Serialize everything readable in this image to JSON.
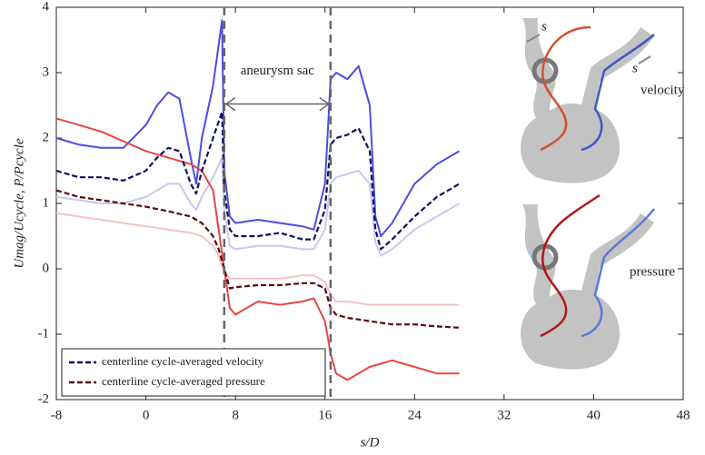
{
  "chart_data": {
    "type": "line",
    "xlabel": "s/D",
    "ylabel": "Umag/Ucycle, P/Pcycle",
    "xlim": [
      -8,
      48
    ],
    "ylim": [
      -2,
      4
    ],
    "xticks": [
      -8,
      0,
      8,
      16,
      24,
      32,
      40,
      48
    ],
    "yticks": [
      -2,
      -1,
      0,
      1,
      2,
      3,
      4
    ],
    "legend": "lower left",
    "vlines": [
      7,
      16.5
    ],
    "annotation": "aneurysm sac",
    "inset_labels": [
      "s",
      "s",
      "velocity",
      "pressure"
    ],
    "series": [
      {
        "name": "centerline cycle-averaged velocity",
        "color": "#101060",
        "dashed": true,
        "x": [
          -8,
          -6,
          -4,
          -2,
          0,
          1,
          2,
          3,
          4,
          4.5,
          5,
          6,
          6.8,
          7,
          7.5,
          8,
          10,
          12,
          14,
          15,
          16,
          16.5,
          17,
          18,
          19,
          20,
          20.5,
          21,
          22,
          24,
          26,
          28
        ],
        "values": [
          1.5,
          1.4,
          1.4,
          1.35,
          1.5,
          1.7,
          1.85,
          1.8,
          1.3,
          1.15,
          1.5,
          2.0,
          2.4,
          1.2,
          0.6,
          0.5,
          0.5,
          0.55,
          0.45,
          0.45,
          0.9,
          1.9,
          2.0,
          2.05,
          2.15,
          1.8,
          0.6,
          0.3,
          0.45,
          0.8,
          1.1,
          1.3
        ]
      },
      {
        "name": "centerline cycle-averaged pressure",
        "color": "#5a0a0a",
        "dashed": true,
        "x": [
          -8,
          -6,
          -4,
          -2,
          0,
          2,
          4,
          5,
          6,
          6.5,
          7,
          7.5,
          8,
          10,
          12,
          14,
          15,
          16,
          16.5,
          17,
          18,
          20,
          22,
          24,
          26,
          28
        ],
        "values": [
          1.2,
          1.1,
          1.05,
          1.0,
          0.95,
          0.88,
          0.8,
          0.7,
          0.5,
          0.3,
          0,
          -0.3,
          -0.28,
          -0.25,
          -0.25,
          -0.22,
          -0.22,
          -0.3,
          -0.6,
          -0.7,
          -0.75,
          -0.8,
          -0.85,
          -0.85,
          -0.88,
          -0.9
        ]
      }
    ],
    "phase_curves": [
      {
        "color": "#c8c8f2",
        "x": [
          -8,
          -6,
          -4,
          -2,
          0,
          1,
          2,
          3,
          4,
          4.5,
          5,
          6,
          6.8,
          7,
          7.5,
          8,
          10,
          12,
          14,
          15,
          16,
          16.5,
          17,
          18,
          19,
          20,
          20.5,
          21,
          22,
          24,
          26,
          28
        ],
        "values": [
          1.1,
          1.05,
          1.0,
          1.0,
          1.1,
          1.2,
          1.3,
          1.3,
          1.0,
          0.9,
          1.1,
          1.4,
          1.7,
          0.9,
          0.35,
          0.3,
          0.35,
          0.35,
          0.3,
          0.3,
          0.6,
          1.3,
          1.4,
          1.45,
          1.5,
          1.3,
          0.4,
          0.2,
          0.3,
          0.6,
          0.8,
          1.0
        ]
      },
      {
        "color": "#4c4ce0",
        "x": [
          -8,
          -6,
          -4,
          -2,
          0,
          1,
          2,
          3,
          4,
          4.5,
          5,
          6,
          6.8,
          7,
          7.5,
          8,
          10,
          12,
          14,
          15,
          16,
          16.5,
          17,
          18,
          19,
          20,
          20.5,
          21,
          22,
          24,
          26,
          28
        ],
        "values": [
          2.0,
          1.9,
          1.85,
          1.85,
          2.2,
          2.5,
          2.7,
          2.6,
          1.7,
          1.3,
          2.0,
          2.8,
          3.8,
          1.5,
          0.8,
          0.7,
          0.75,
          0.7,
          0.65,
          0.6,
          1.3,
          2.9,
          3.0,
          2.9,
          3.1,
          2.5,
          0.8,
          0.5,
          0.7,
          1.3,
          1.6,
          1.8
        ]
      },
      {
        "color": "#f5c2c2",
        "x": [
          -8,
          -6,
          -4,
          -2,
          0,
          2,
          4,
          5,
          6,
          6.5,
          7,
          7.5,
          8,
          10,
          12,
          14,
          15,
          16,
          16.5,
          17,
          18,
          20,
          22,
          24,
          26,
          28
        ],
        "values": [
          0.85,
          0.8,
          0.75,
          0.7,
          0.65,
          0.6,
          0.55,
          0.5,
          0.35,
          0.2,
          -0.05,
          -0.15,
          -0.15,
          -0.15,
          -0.15,
          -0.1,
          -0.1,
          -0.2,
          -0.4,
          -0.5,
          -0.5,
          -0.55,
          -0.55,
          -0.55,
          -0.55,
          -0.55
        ]
      },
      {
        "color": "#e84545",
        "x": [
          -8,
          -6,
          -4,
          -2,
          0,
          2,
          4,
          5,
          6,
          6.5,
          7,
          7.5,
          8,
          10,
          12,
          14,
          15,
          16,
          16.5,
          17,
          18,
          20,
          22,
          24,
          26,
          28
        ],
        "values": [
          2.3,
          2.2,
          2.1,
          1.95,
          1.8,
          1.7,
          1.6,
          1.5,
          1.2,
          0.6,
          0,
          -0.6,
          -0.7,
          -0.5,
          -0.55,
          -0.5,
          -0.45,
          -0.8,
          -1.3,
          -1.6,
          -1.7,
          -1.5,
          -1.4,
          -1.5,
          -1.6,
          -1.6
        ]
      }
    ]
  }
}
